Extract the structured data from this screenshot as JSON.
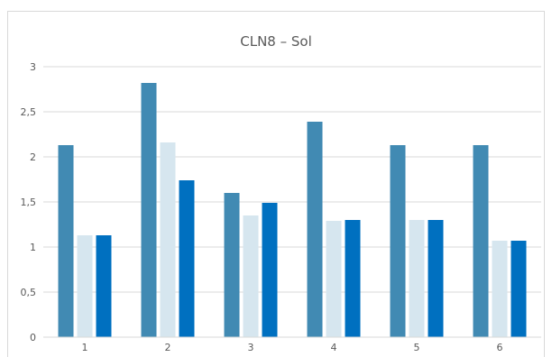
{
  "chart_data": {
    "type": "bar",
    "title": "CLN8 – Sol",
    "categories": [
      "1",
      "2",
      "3",
      "4",
      "5",
      "6"
    ],
    "series": [
      {
        "values": [
          2.13,
          2.82,
          1.6,
          2.39,
          2.13,
          2.13
        ]
      },
      {
        "values": [
          1.13,
          2.16,
          1.35,
          1.29,
          1.3,
          1.07
        ]
      },
      {
        "values": [
          1.13,
          1.74,
          1.49,
          1.3,
          1.3,
          1.07
        ]
      }
    ],
    "ylim": [
      0,
      3
    ],
    "yticks": [
      "0",
      "0,5",
      "1",
      "1,5",
      "2",
      "2,5",
      "3"
    ],
    "grid": true,
    "legend": "none",
    "colors": [
      "#418ab3",
      "#d6e6ef",
      "#0070c0"
    ]
  }
}
